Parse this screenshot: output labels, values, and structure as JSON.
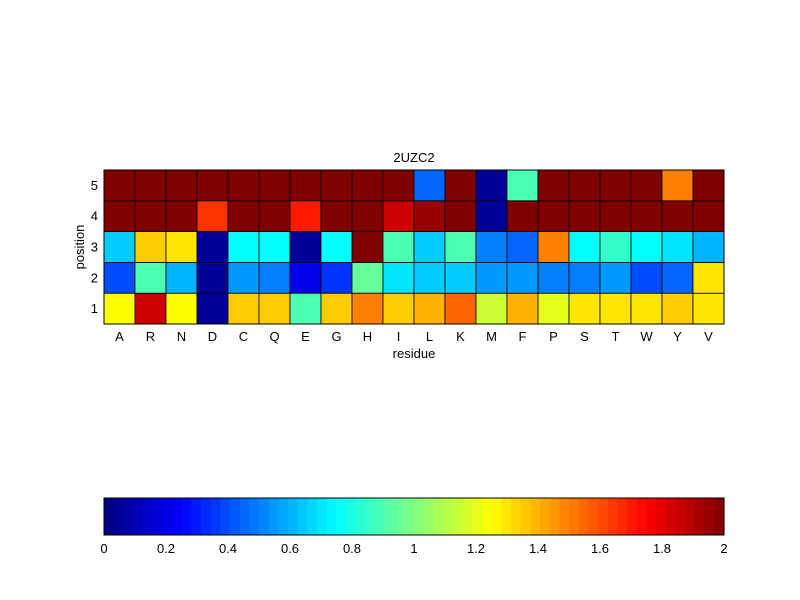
{
  "chart_data": {
    "type": "heatmap",
    "title": "2UZC2",
    "xlabel": "residue",
    "ylabel": "position",
    "x_categories": [
      "A",
      "R",
      "N",
      "D",
      "C",
      "Q",
      "E",
      "G",
      "H",
      "I",
      "L",
      "K",
      "M",
      "F",
      "P",
      "S",
      "T",
      "W",
      "Y",
      "V"
    ],
    "y_categories": [
      "1",
      "2",
      "3",
      "4",
      "5"
    ],
    "values": [
      [
        1.25,
        1.85,
        1.25,
        0.05,
        1.35,
        1.35,
        0.9,
        1.35,
        1.5,
        1.35,
        1.4,
        1.55,
        1.15,
        1.4,
        1.2,
        1.3,
        1.3,
        1.3,
        1.35,
        1.3
      ],
      [
        0.4,
        0.9,
        0.6,
        0.05,
        0.55,
        0.5,
        0.2,
        0.35,
        0.95,
        0.7,
        0.65,
        0.65,
        0.55,
        0.55,
        0.5,
        0.5,
        0.55,
        0.4,
        0.45,
        1.3
      ],
      [
        0.65,
        1.35,
        1.3,
        0.05,
        0.75,
        0.75,
        0.05,
        0.75,
        2.0,
        0.9,
        0.65,
        0.9,
        0.5,
        0.45,
        1.5,
        0.75,
        0.85,
        0.75,
        0.7,
        0.6
      ],
      [
        2.0,
        2.0,
        2.0,
        1.65,
        2.0,
        2.0,
        1.7,
        2.0,
        2.0,
        1.85,
        1.95,
        2.0,
        0.05,
        2.0,
        2.0,
        2.0,
        2.0,
        2.0,
        2.0,
        2.0
      ],
      [
        2.0,
        2.0,
        2.0,
        2.0,
        2.0,
        2.0,
        2.0,
        2.0,
        2.0,
        2.0,
        0.45,
        2.0,
        0.05,
        0.9,
        2.0,
        2.0,
        2.0,
        2.0,
        1.5,
        2.0
      ]
    ],
    "colorbar": {
      "colormap": "jet",
      "range": [
        0,
        2
      ],
      "orientation": "horizontal",
      "ticks": [
        "0",
        "0.2",
        "0.4",
        "0.6",
        "0.8",
        "1",
        "1.2",
        "1.4",
        "1.6",
        "1.8",
        "2"
      ]
    },
    "grid": false,
    "legend": "none"
  }
}
